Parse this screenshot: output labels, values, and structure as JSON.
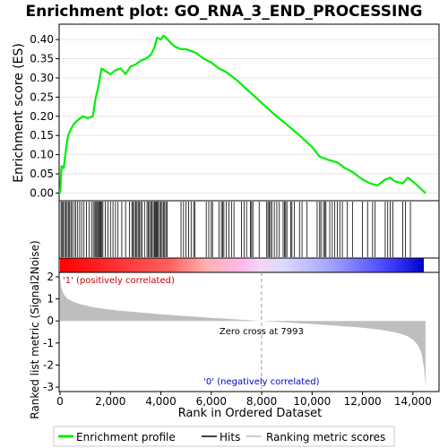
{
  "colors": {
    "enrichment_line": "#00ee00",
    "hits": "#000000",
    "metric_fill": "#bebebe",
    "zero_cross": "#a0a0a0",
    "positive_label": "#cc0000",
    "negative_label": "#0000cc"
  },
  "chart_data": [
    {
      "type": "line",
      "title": "Enrichment plot: GO_RNA_3_END_PROCESSING",
      "ylabel": "Enrichment score (ES)",
      "xlim": [
        0,
        15000
      ],
      "ylim": [
        -0.02,
        0.44
      ],
      "yticks": [
        0.0,
        0.05,
        0.1,
        0.15,
        0.2,
        0.25,
        0.3,
        0.35,
        0.4
      ],
      "ytick_labels": [
        "0.00",
        "0.05",
        "0.10",
        "0.15",
        "0.20",
        "0.25",
        "0.30",
        "0.35",
        "0.40"
      ],
      "grid": true,
      "series": [
        {
          "name": "Enrichment profile",
          "x": [
            0,
            60,
            150,
            250,
            320,
            420,
            550,
            700,
            900,
            1100,
            1300,
            1420,
            1500,
            1580,
            1650,
            1750,
            2000,
            2200,
            2400,
            2600,
            2800,
            3000,
            3200,
            3400,
            3600,
            3750,
            3850,
            4000,
            4100,
            4200,
            4400,
            4600,
            4800,
            5000,
            5200,
            5400,
            5700,
            6000,
            6300,
            6600,
            7000,
            7500,
            8000,
            8500,
            9000,
            9500,
            10000,
            10300,
            10700,
            11000,
            11300,
            11600,
            12000,
            12300,
            12600,
            12900,
            13100,
            13300,
            13600,
            13800,
            14000,
            14200,
            14500
          ],
          "y": [
            0.0,
            0.07,
            0.065,
            0.12,
            0.15,
            0.165,
            0.18,
            0.19,
            0.2,
            0.195,
            0.2,
            0.25,
            0.27,
            0.3,
            0.325,
            0.32,
            0.31,
            0.32,
            0.325,
            0.31,
            0.33,
            0.335,
            0.345,
            0.35,
            0.36,
            0.38,
            0.405,
            0.4,
            0.41,
            0.405,
            0.39,
            0.38,
            0.375,
            0.375,
            0.37,
            0.365,
            0.35,
            0.34,
            0.325,
            0.315,
            0.295,
            0.265,
            0.235,
            0.205,
            0.178,
            0.15,
            0.12,
            0.095,
            0.085,
            0.08,
            0.065,
            0.055,
            0.035,
            0.025,
            0.02,
            0.035,
            0.04,
            0.03,
            0.025,
            0.04,
            0.03,
            0.018,
            0.0
          ]
        }
      ]
    },
    {
      "type": "scatter",
      "series": [
        {
          "name": "Hits",
          "x": [
            40,
            80,
            130,
            180,
            230,
            280,
            330,
            380,
            430,
            480,
            560,
            620,
            700,
            780,
            860,
            950,
            1050,
            1150,
            1250,
            1320,
            1380,
            1420,
            1460,
            1500,
            1540,
            1580,
            1620,
            1660,
            1700,
            1800,
            1900,
            2000,
            2100,
            2200,
            2300,
            2450,
            2600,
            2750,
            2850,
            2900,
            2950,
            3000,
            3050,
            3100,
            3150,
            3200,
            3250,
            3350,
            3450,
            3500,
            3550,
            3600,
            3650,
            3700,
            3750,
            3780,
            3820,
            3860,
            3900,
            3950,
            4000,
            4050,
            4100,
            4150,
            4200,
            4250,
            4800,
            4900,
            5000,
            5100,
            5200,
            5300,
            5350,
            5800,
            5900,
            6000,
            6050,
            6300,
            6400,
            6450,
            6500,
            6600,
            6700,
            6800,
            6900,
            7200,
            7300,
            7400,
            7550,
            7600,
            7650,
            7900,
            8200,
            8250,
            8300,
            8350,
            8400,
            8500,
            8600,
            8700,
            8850,
            8900,
            8950,
            9000,
            9150,
            9200,
            9300,
            9500,
            9600,
            9800,
            10200,
            10300,
            10350,
            10450,
            10500,
            10550,
            10700,
            10800,
            10900,
            11000,
            11100,
            11200,
            11400,
            11600,
            12000,
            12200,
            12400,
            12500,
            12900,
            13000,
            13100,
            13200,
            13600,
            13700,
            13900
          ]
        }
      ]
    },
    {
      "type": "area",
      "xlabel": "Rank in Ordered Dataset",
      "ylabel": "Ranked list metric (Signal2Noise)",
      "xlim": [
        0,
        15000
      ],
      "ylim": [
        -3.2,
        2.2
      ],
      "xticks": [
        0,
        2000,
        4000,
        6000,
        8000,
        10000,
        12000,
        14000
      ],
      "xtick_labels": [
        "0",
        "2,000",
        "4,000",
        "6,000",
        "8,000",
        "10,000",
        "12,000",
        "14,000"
      ],
      "yticks": [
        -3,
        -2,
        -1,
        0,
        1,
        2
      ],
      "ytick_labels": [
        "-3",
        "-2",
        "-1",
        "0",
        "1",
        "2"
      ],
      "series": [
        {
          "name": "Ranking metric scores",
          "x": [
            0,
            50,
            150,
            300,
            500,
            800,
            1200,
            1700,
            2300,
            3000,
            4000,
            5000,
            6000,
            7000,
            7993,
            9000,
            10000,
            11000,
            12000,
            12500,
            13000,
            13500,
            13800,
            14000,
            14200,
            14350,
            14450,
            14500
          ],
          "y": [
            2.0,
            1.5,
            1.2,
            1.0,
            0.88,
            0.76,
            0.65,
            0.55,
            0.47,
            0.4,
            0.3,
            0.22,
            0.14,
            0.07,
            0.0,
            -0.07,
            -0.14,
            -0.22,
            -0.31,
            -0.37,
            -0.45,
            -0.57,
            -0.7,
            -0.85,
            -1.1,
            -1.5,
            -2.2,
            -3.0
          ]
        }
      ],
      "annotations": {
        "zero_cross": "Zero cross at 7993",
        "zero_cross_x": 7993,
        "positive": "'1' (positively correlated)",
        "negative": "'0' (negatively correlated)"
      }
    }
  ],
  "legend": {
    "items": [
      "Enrichment profile",
      "Hits",
      "Ranking metric scores"
    ]
  }
}
